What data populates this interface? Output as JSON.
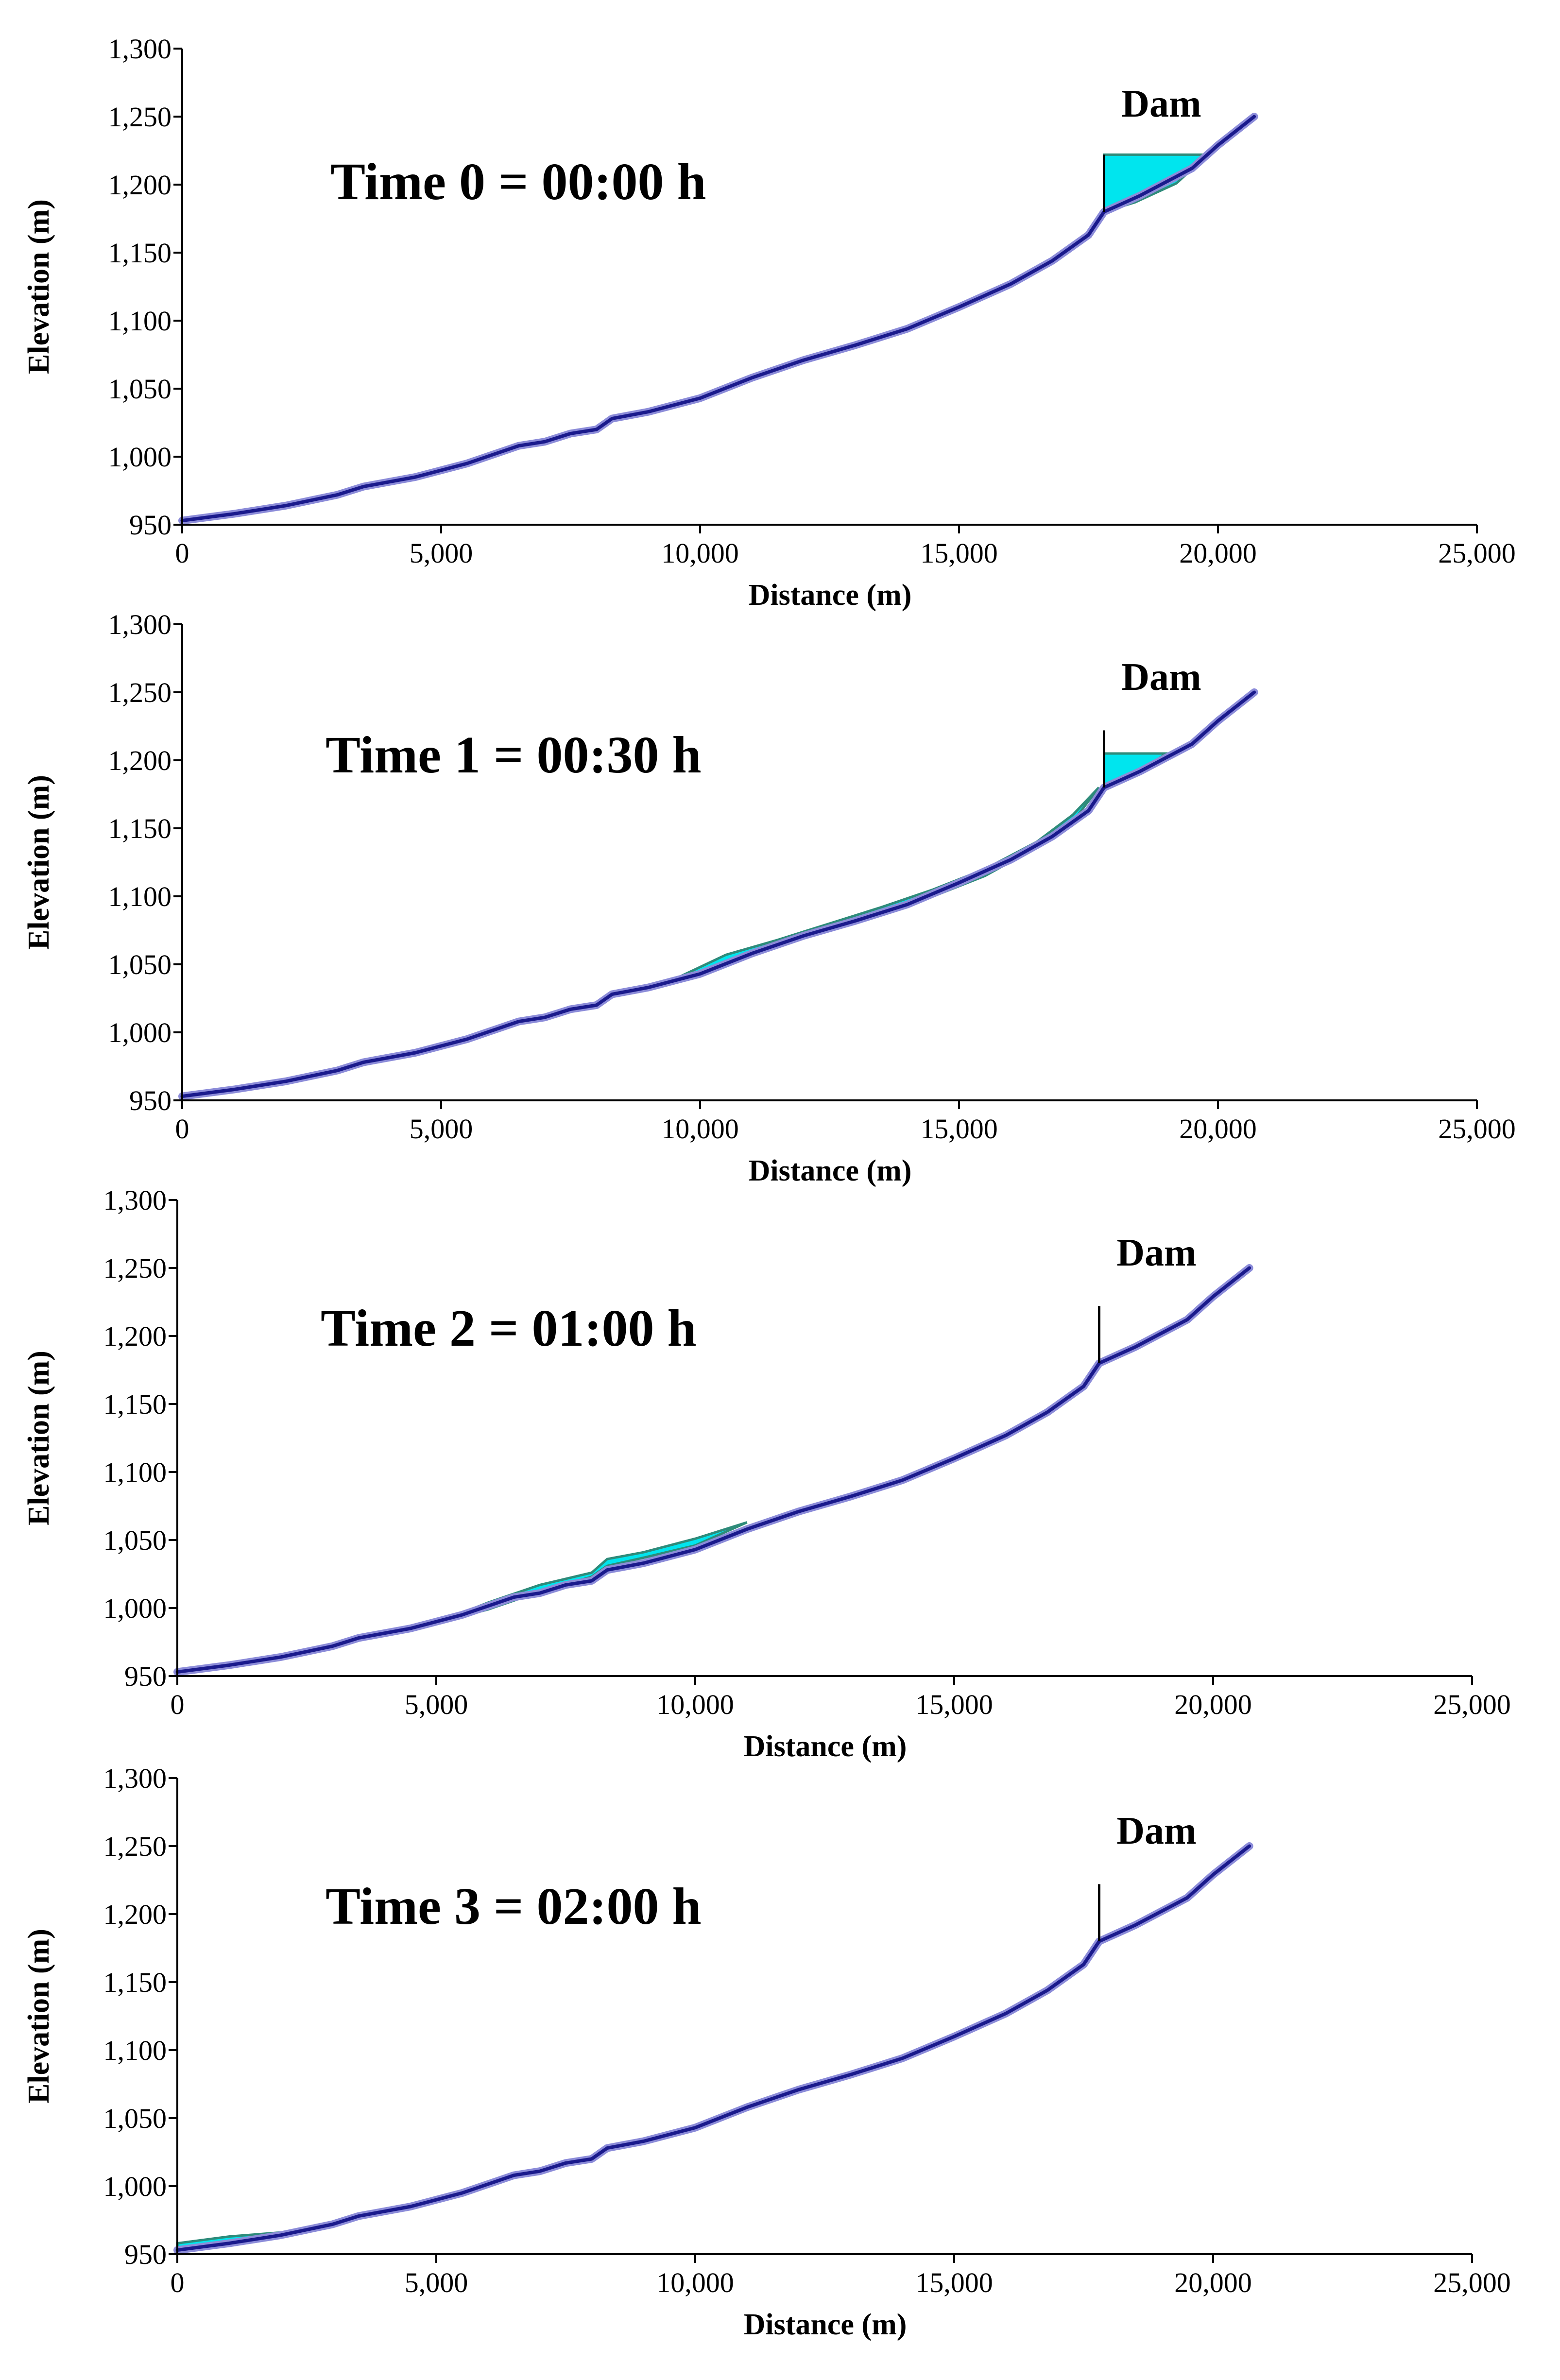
{
  "chart_data": [
    {
      "type": "area",
      "title": "Time 0 = 00:00 h",
      "annotation": "Dam",
      "xlabel": "Distance (m)",
      "ylabel": "Elevation (m)",
      "xlim": [
        0,
        25000
      ],
      "ylim": [
        950,
        1300
      ],
      "x_ticks": [
        0,
        5000,
        10000,
        15000,
        20000,
        25000
      ],
      "x_tick_labels": [
        "0",
        "5,000",
        "10,000",
        "15,000",
        "20,000",
        "25,000"
      ],
      "y_ticks": [
        950,
        1000,
        1050,
        1100,
        1150,
        1200,
        1250,
        1300
      ],
      "y_tick_labels": [
        "950",
        "1,000",
        "1,050",
        "1,100",
        "1,150",
        "1,200",
        "1,250",
        "1,300"
      ],
      "dam": {
        "x": 17800,
        "crest": 1222
      },
      "water": [
        {
          "x": [
            17800,
            18200,
            19000,
            19500,
            19800,
            19200,
            18400,
            17800
          ],
          "y": [
            1222,
            1222,
            1222,
            1222,
            1222,
            1201,
            1187,
            1180
          ]
        }
      ],
      "series": [
        {
          "name": "Bed profile",
          "x": [
            0,
            1000,
            2000,
            3000,
            3500,
            4500,
            5500,
            6500,
            7000,
            7500,
            8000,
            8300,
            9000,
            10000,
            11000,
            12000,
            13000,
            14000,
            15000,
            16000,
            16800,
            17500,
            17800,
            18500,
            19500,
            20000,
            20700
          ],
          "y": [
            953,
            958,
            964,
            972,
            978,
            985,
            995,
            1008,
            1011,
            1017,
            1020,
            1028,
            1033,
            1043,
            1058,
            1071,
            1082,
            1094,
            1110,
            1127,
            1144,
            1163,
            1180,
            1192,
            1212,
            1229,
            1250
          ]
        }
      ]
    },
    {
      "type": "area",
      "title": "Time 1 = 00:30 h",
      "annotation": "Dam",
      "xlabel": "Distance (m)",
      "ylabel": "Elevation (m)",
      "xlim": [
        0,
        25000
      ],
      "ylim": [
        950,
        1300
      ],
      "x_ticks": [
        0,
        5000,
        10000,
        15000,
        20000,
        25000
      ],
      "x_tick_labels": [
        "0",
        "5,000",
        "10,000",
        "15,000",
        "20,000",
        "25,000"
      ],
      "y_ticks": [
        950,
        1000,
        1050,
        1100,
        1150,
        1200,
        1250,
        1300
      ],
      "y_tick_labels": [
        "950",
        "1,000",
        "1,050",
        "1,100",
        "1,150",
        "1,200",
        "1,250",
        "1,300"
      ],
      "dam": {
        "x": 17800,
        "crest": 1222
      },
      "water": [
        {
          "x": [
            17800,
            18300,
            19000,
            18500,
            17800
          ],
          "y": [
            1205,
            1205,
            1205,
            1192,
            1180
          ]
        },
        {
          "x": [
            9500,
            10500,
            11500,
            12500,
            13500,
            14500,
            15500,
            16500,
            17200,
            17700,
            17700,
            17200,
            16500,
            15500,
            14500,
            13500,
            12500,
            11500,
            10500,
            9500
          ],
          "y": [
            1039,
            1057,
            1068,
            1080,
            1092,
            1105,
            1120,
            1140,
            1160,
            1180,
            1180,
            1155,
            1136,
            1115,
            1100,
            1087,
            1076,
            1064,
            1051,
            1039
          ]
        }
      ],
      "series": [
        {
          "name": "Bed profile",
          "x": [
            0,
            1000,
            2000,
            3000,
            3500,
            4500,
            5500,
            6500,
            7000,
            7500,
            8000,
            8300,
            9000,
            10000,
            11000,
            12000,
            13000,
            14000,
            15000,
            16000,
            16800,
            17500,
            17800,
            18500,
            19500,
            20000,
            20700
          ],
          "y": [
            953,
            958,
            964,
            972,
            978,
            985,
            995,
            1008,
            1011,
            1017,
            1020,
            1028,
            1033,
            1043,
            1058,
            1071,
            1082,
            1094,
            1110,
            1127,
            1144,
            1163,
            1180,
            1192,
            1212,
            1229,
            1250
          ]
        }
      ]
    },
    {
      "type": "area",
      "title": "Time 2 = 01:00 h",
      "annotation": "Dam",
      "xlabel": "Distance (m)",
      "ylabel": "Elevation (m)",
      "xlim": [
        0,
        25000
      ],
      "ylim": [
        950,
        1300
      ],
      "x_ticks": [
        0,
        5000,
        10000,
        15000,
        20000,
        25000
      ],
      "x_tick_labels": [
        "0",
        "5,000",
        "10,000",
        "15,000",
        "20,000",
        "25,000"
      ],
      "y_ticks": [
        950,
        1000,
        1050,
        1100,
        1150,
        1200,
        1250,
        1300
      ],
      "y_tick_labels": [
        "950",
        "1,000",
        "1,050",
        "1,100",
        "1,150",
        "1,200",
        "1,250",
        "1,300"
      ],
      "dam": {
        "x": 17800,
        "crest": 1222
      },
      "water": [
        {
          "x": [
            5000,
            6000,
            7000,
            8000,
            8300,
            9000,
            10000,
            11000,
            11000,
            10000,
            9000,
            8300,
            8000,
            7000,
            6000,
            5000
          ],
          "y": [
            989,
            1004,
            1017,
            1026,
            1036,
            1041,
            1051,
            1063,
            1063,
            1046,
            1037,
            1031,
            1023,
            1012,
            999,
            989
          ]
        }
      ],
      "series": [
        {
          "name": "Bed profile",
          "x": [
            0,
            1000,
            2000,
            3000,
            3500,
            4500,
            5500,
            6500,
            7000,
            7500,
            8000,
            8300,
            9000,
            10000,
            11000,
            12000,
            13000,
            14000,
            15000,
            16000,
            16800,
            17500,
            17800,
            18500,
            19500,
            20000,
            20700
          ],
          "y": [
            953,
            958,
            964,
            972,
            978,
            985,
            995,
            1008,
            1011,
            1017,
            1020,
            1028,
            1033,
            1043,
            1058,
            1071,
            1082,
            1094,
            1110,
            1127,
            1144,
            1163,
            1180,
            1192,
            1212,
            1229,
            1250
          ]
        }
      ]
    },
    {
      "type": "area",
      "title": "Time 3 = 02:00 h",
      "annotation": "Dam",
      "xlabel": "Distance (m)",
      "ylabel": "Elevation (m)",
      "xlim": [
        0,
        25000
      ],
      "ylim": [
        950,
        1300
      ],
      "x_ticks": [
        0,
        5000,
        10000,
        15000,
        20000,
        25000
      ],
      "x_tick_labels": [
        "0",
        "5,000",
        "10,000",
        "15,000",
        "20,000",
        "25,000"
      ],
      "y_ticks": [
        950,
        1000,
        1050,
        1100,
        1150,
        1200,
        1250,
        1300
      ],
      "y_tick_labels": [
        "950",
        "1,000",
        "1,050",
        "1,100",
        "1,150",
        "1,200",
        "1,250",
        "1,300"
      ],
      "dam": {
        "x": 17800,
        "crest": 1222
      },
      "water": [
        {
          "x": [
            0,
            1000,
            2000,
            2000,
            1000,
            0
          ],
          "y": [
            958,
            963,
            966,
            965,
            958,
            953
          ]
        }
      ],
      "series": [
        {
          "name": "Bed profile",
          "x": [
            0,
            1000,
            2000,
            3000,
            3500,
            4500,
            5500,
            6500,
            7000,
            7500,
            8000,
            8300,
            9000,
            10000,
            11000,
            12000,
            13000,
            14000,
            15000,
            16000,
            16800,
            17500,
            17800,
            18500,
            19500,
            20000,
            20700
          ],
          "y": [
            953,
            958,
            964,
            972,
            978,
            985,
            995,
            1008,
            1011,
            1017,
            1020,
            1028,
            1033,
            1043,
            1058,
            1071,
            1082,
            1094,
            1110,
            1127,
            1144,
            1163,
            1180,
            1192,
            1212,
            1229,
            1250
          ]
        }
      ]
    }
  ],
  "colors": {
    "water_fill": "#00e5ee",
    "water_edge": "#2e8b7a",
    "bed_line": "#1a1a8c",
    "bed_shadow": "#8c8cd9",
    "axis": "#000000"
  }
}
